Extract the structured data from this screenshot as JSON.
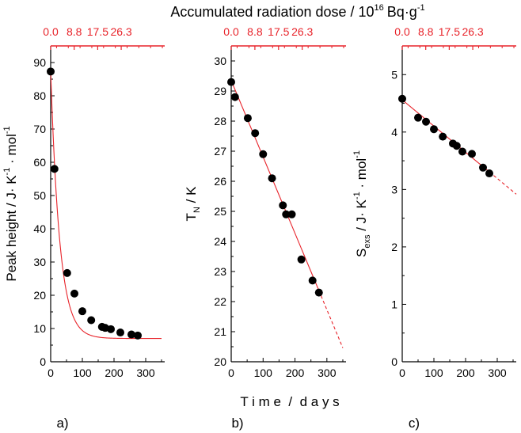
{
  "figure_title": "Accumulated radiation dose / 10",
  "figure_title_exp": "16",
  "figure_title_unit": "Bq·g",
  "figure_title_unit_exp": "-1",
  "shared_xlabel": "T i m e  /  d a y s",
  "colors": {
    "data": "#000000",
    "fit": "#e8232a",
    "axis": "#000000",
    "top_axis": "#e8232a"
  },
  "chart_data": [
    {
      "type": "scatter",
      "panel_label": "a)",
      "ylabel": "Peak height / J· K",
      "ylabel_exp": "-1",
      "ylabel_tail": " · mol",
      "ylabel_tail_exp": "-1",
      "xlim": [
        0,
        360
      ],
      "ylim": [
        0,
        95
      ],
      "x_ticks": [
        0,
        100,
        200,
        300
      ],
      "y_ticks": [
        0,
        10,
        20,
        30,
        40,
        50,
        60,
        70,
        80,
        90
      ],
      "top_ticks": [
        "0.0",
        "8.8",
        "17.5",
        "26.3"
      ],
      "points": [
        [
          0,
          87.3
        ],
        [
          12,
          58
        ],
        [
          52,
          26.7
        ],
        [
          75,
          20.5
        ],
        [
          100,
          15.2
        ],
        [
          128,
          12.5
        ],
        [
          162,
          10.5
        ],
        [
          172,
          10.2
        ],
        [
          190,
          9.8
        ],
        [
          220,
          8.8
        ],
        [
          255,
          8.2
        ],
        [
          275,
          7.9
        ]
      ],
      "fit": {
        "model": "exponential",
        "a": 80.4,
        "tau": 28.5,
        "c": 7.0,
        "x_end": 350
      }
    },
    {
      "type": "scatter",
      "panel_label": "b)",
      "ylabel": "T",
      "ylabel_sub": "N",
      "ylabel_tail": " / K",
      "xlim": [
        0,
        360
      ],
      "ylim": [
        20,
        30.5
      ],
      "x_ticks": [
        0,
        100,
        200,
        300
      ],
      "y_ticks": [
        20,
        21,
        22,
        23,
        24,
        25,
        26,
        27,
        28,
        29,
        30
      ],
      "top_ticks": [
        "0.0",
        "8.8",
        "17.5",
        "26.3"
      ],
      "points": [
        [
          0,
          29.3
        ],
        [
          12,
          28.8
        ],
        [
          52,
          28.1
        ],
        [
          75,
          27.6
        ],
        [
          100,
          26.9
        ],
        [
          128,
          26.1
        ],
        [
          162,
          25.2
        ],
        [
          172,
          24.9
        ],
        [
          190,
          24.9
        ],
        [
          220,
          23.4
        ],
        [
          255,
          22.7
        ],
        [
          275,
          22.3
        ]
      ],
      "fit": {
        "model": "linear",
        "intercept": 29.35,
        "slope": -0.0254,
        "solid_end": 275,
        "x_end": 350
      }
    },
    {
      "type": "scatter",
      "panel_label": "c)",
      "ylabel": "S",
      "ylabel_sub": "exs",
      "ylabel_tail": " / J· K",
      "ylabel_tail_exp": "-1",
      "ylabel_tail2": " · mol",
      "ylabel_tail2_exp": "-1",
      "xlim": [
        0,
        360
      ],
      "ylim": [
        0,
        5.5
      ],
      "x_ticks": [
        0,
        100,
        200,
        300
      ],
      "y_ticks": [
        0,
        1,
        2,
        3,
        4,
        5
      ],
      "top_ticks": [
        "0.0",
        "8.8",
        "17.5",
        "26.3"
      ],
      "points": [
        [
          0,
          4.58
        ],
        [
          50,
          4.25
        ],
        [
          75,
          4.18
        ],
        [
          100,
          4.05
        ],
        [
          128,
          3.92
        ],
        [
          160,
          3.8
        ],
        [
          172,
          3.76
        ],
        [
          190,
          3.66
        ],
        [
          220,
          3.62
        ],
        [
          255,
          3.38
        ],
        [
          275,
          3.28
        ]
      ],
      "fit": {
        "model": "linear",
        "intercept": 4.56,
        "slope": -0.00456,
        "solid_end": 275,
        "x_end": 360
      }
    }
  ]
}
